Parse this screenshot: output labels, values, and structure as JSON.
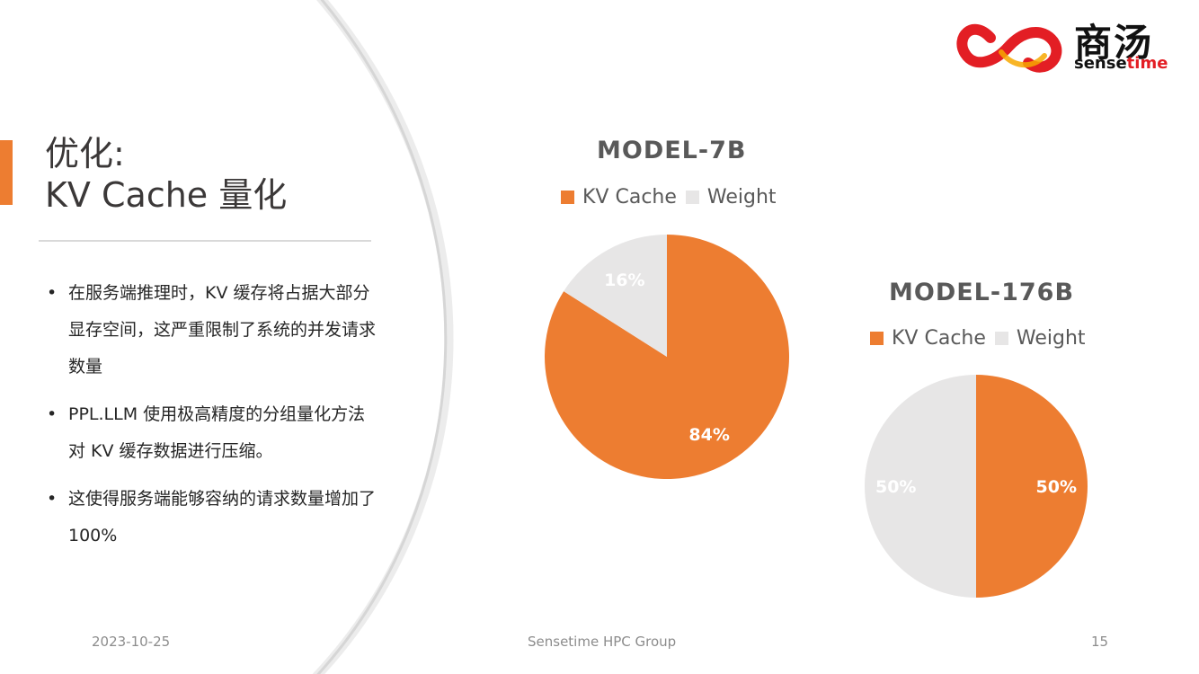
{
  "slide": {
    "title_line1": "优化:",
    "title_line2": "KV Cache 量化",
    "bullets": [
      "在服务端推理时，KV 缓存将占据大部分显存空间，这严重限制了系统的并发请求数量",
      "PPL.LLM 使用极高精度的分组量化方法对 KV 缓存数据进行压缩。",
      "这使得服务端能够容纳的请求数量增加了 100%"
    ],
    "bullet_glyph": "•"
  },
  "logo": {
    "cn": "商汤",
    "en_prefix": "sense",
    "en_suffix": "time"
  },
  "footer": {
    "date": "2023-10-25",
    "center": "Sensetime HPC Group",
    "page": "15"
  },
  "colors": {
    "accent": "#ed7d31",
    "kv_cache": "#ed7d31",
    "weight": "#e7e6e6"
  },
  "chart_data": [
    {
      "type": "pie",
      "title": "MODEL-7B",
      "categories": [
        "KV Cache",
        "Weight"
      ],
      "values": [
        84,
        16
      ],
      "labels": [
        "84%",
        "16%"
      ],
      "legend": "top"
    },
    {
      "type": "pie",
      "title": "MODEL-176B",
      "categories": [
        "KV Cache",
        "Weight"
      ],
      "values": [
        50,
        50
      ],
      "labels": [
        "50%",
        "50%"
      ],
      "legend": "top"
    }
  ]
}
